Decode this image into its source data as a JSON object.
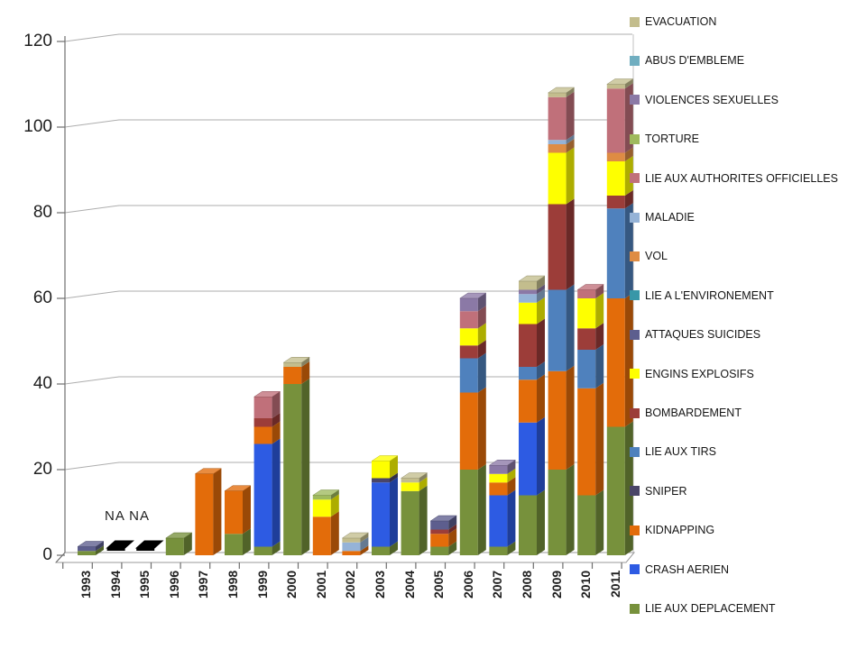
{
  "labels": {
    "na_note": "NA NA"
  },
  "chart_data": {
    "type": "bar",
    "stacked": true,
    "style": "3d",
    "title": "",
    "xlabel": "",
    "ylabel": "",
    "ylim": [
      0,
      120
    ],
    "yticks": [
      0,
      20,
      40,
      60,
      80,
      100,
      120
    ],
    "grid": true,
    "legend_position": "right",
    "categories": [
      "1993",
      "1994",
      "1995",
      "1996",
      "1997",
      "1998",
      "1999",
      "2000",
      "2001",
      "2002",
      "2003",
      "2004",
      "2005",
      "2006",
      "2007",
      "2008",
      "2009",
      "2010",
      "2011"
    ],
    "na_categories": [
      "1994",
      "1995"
    ],
    "na_marker_color": "#000000",
    "series_bottom_to_top": [
      {
        "name": "LIE AUX DEPLACEMENT",
        "color": "#77913c",
        "values": [
          1,
          0,
          0,
          4,
          0,
          5,
          2,
          40,
          0,
          0,
          2,
          15,
          2,
          20,
          2,
          14,
          20,
          14,
          30
        ]
      },
      {
        "name": "CRASH AERIEN",
        "color": "#2d5be3",
        "values": [
          0,
          0,
          0,
          0,
          0,
          0,
          24,
          0,
          0,
          0,
          15,
          0,
          0,
          0,
          12,
          17,
          0,
          0,
          0
        ]
      },
      {
        "name": "KIDNAPPING",
        "color": "#e36c0a",
        "values": [
          0,
          0,
          0,
          0,
          19,
          10,
          4,
          4,
          9,
          1,
          0,
          0,
          3,
          18,
          3,
          10,
          23,
          25,
          30
        ]
      },
      {
        "name": "SNIPER",
        "color": "#4a4568",
        "values": [
          0,
          0,
          0,
          0,
          0,
          0,
          0,
          0,
          0,
          0,
          1,
          0,
          0,
          0,
          0,
          0,
          0,
          0,
          0
        ]
      },
      {
        "name": "LIE AUX TIRS",
        "color": "#4f81bd",
        "values": [
          0,
          0,
          0,
          0,
          0,
          0,
          0,
          0,
          0,
          0,
          0,
          0,
          0,
          8,
          0,
          3,
          19,
          9,
          21
        ]
      },
      {
        "name": "BOMBARDEMENT",
        "color": "#9c3d39",
        "values": [
          0,
          0,
          0,
          0,
          0,
          0,
          2,
          0,
          0,
          0,
          0,
          0,
          1,
          3,
          0,
          10,
          20,
          5,
          3
        ]
      },
      {
        "name": "ENGINS EXPLOSIFS",
        "color": "#feff00",
        "values": [
          0,
          0,
          0,
          0,
          0,
          0,
          0,
          0,
          4,
          0,
          4,
          2,
          0,
          4,
          2,
          5,
          12,
          7,
          8
        ]
      },
      {
        "name": "ATTAQUES SUICIDES",
        "color": "#5d5e8e",
        "values": [
          1,
          0,
          0,
          0,
          0,
          0,
          0,
          0,
          0,
          0,
          0,
          0,
          2,
          0,
          0,
          0,
          0,
          0,
          0
        ]
      },
      {
        "name": "LIE A L'ENVIRONEMENT",
        "color": "#3897a8",
        "values": [
          0,
          0,
          0,
          0,
          0,
          0,
          0,
          0,
          0,
          0,
          0,
          0,
          0,
          0,
          0,
          0,
          0,
          0,
          0
        ]
      },
      {
        "name": "VOL",
        "color": "#de8c44",
        "values": [
          0,
          0,
          0,
          0,
          0,
          0,
          0,
          0,
          0,
          0,
          0,
          0,
          0,
          0,
          0,
          0,
          2,
          0,
          2
        ]
      },
      {
        "name": "MALADIE",
        "color": "#95b3d7",
        "values": [
          0,
          0,
          0,
          0,
          0,
          0,
          0,
          0,
          0,
          2,
          0,
          0,
          0,
          0,
          0,
          2,
          1,
          0,
          0
        ]
      },
      {
        "name": "LIE AUX AUTHORITES OFFICIELLES",
        "color": "#c0707a",
        "values": [
          0,
          0,
          0,
          0,
          0,
          0,
          5,
          0,
          0,
          0,
          0,
          0,
          0,
          4,
          0,
          0,
          10,
          2,
          15
        ]
      },
      {
        "name": "TORTURE",
        "color": "#9fba5d",
        "values": [
          0,
          0,
          0,
          0,
          0,
          0,
          0,
          0,
          1,
          0,
          0,
          0,
          0,
          0,
          0,
          0,
          0,
          0,
          0
        ]
      },
      {
        "name": "VIOLENCES SEXUELLES",
        "color": "#8b79a6",
        "values": [
          0,
          0,
          0,
          0,
          0,
          0,
          0,
          0,
          0,
          0,
          0,
          0,
          0,
          3,
          2,
          1,
          0,
          0,
          0
        ]
      },
      {
        "name": "ABUS D'EMBLEME",
        "color": "#70aec0",
        "values": [
          0,
          0,
          0,
          0,
          0,
          0,
          0,
          0,
          0,
          0,
          0,
          0,
          0,
          0,
          0,
          0,
          0,
          0,
          0
        ]
      },
      {
        "name": "EVACUATION",
        "color": "#c3bd8d",
        "values": [
          0,
          0,
          0,
          0,
          0,
          0,
          0,
          1,
          0,
          1,
          0,
          1,
          0,
          0,
          0,
          2,
          1,
          0,
          1
        ]
      }
    ],
    "legend_top_to_bottom": [
      "EVACUATION",
      "ABUS D'EMBLEME",
      "VIOLENCES SEXUELLES",
      "TORTURE",
      "LIE AUX AUTHORITES OFFICIELLES",
      "MALADIE",
      "VOL",
      "LIE A L'ENVIRONEMENT",
      "ATTAQUES SUICIDES",
      "ENGINS EXPLOSIFS",
      "BOMBARDEMENT",
      "LIE AUX TIRS",
      "SNIPER",
      "KIDNAPPING",
      "CRASH AERIEN",
      "LIE AUX DEPLACEMENT"
    ]
  }
}
